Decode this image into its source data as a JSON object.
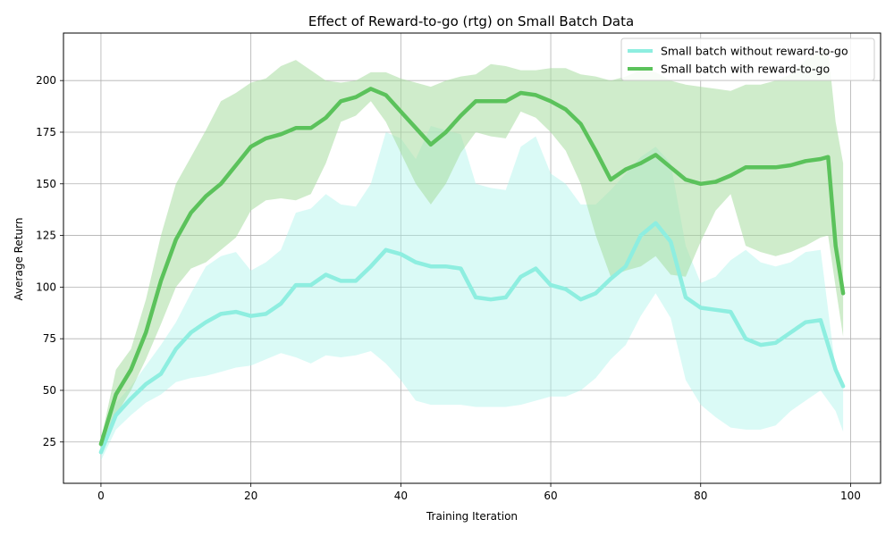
{
  "chart_data": {
    "type": "line",
    "title": "Effect of Reward-to-go (rtg) on Small Batch Data",
    "xlabel": "Training Iteration",
    "ylabel": "Average Return",
    "xlim": [
      -5,
      104
    ],
    "ylim": [
      5,
      223
    ],
    "xticks": [
      0,
      20,
      40,
      60,
      80,
      100
    ],
    "yticks": [
      25,
      50,
      75,
      100,
      125,
      150,
      175,
      200
    ],
    "grid": true,
    "legend_position": "top-right",
    "series": [
      {
        "name": "Small batch without reward-to-go",
        "color": "#8eeee0",
        "band_color": "#aef5ea",
        "x": [
          0,
          2,
          4,
          6,
          8,
          10,
          12,
          14,
          16,
          18,
          20,
          22,
          24,
          26,
          28,
          30,
          32,
          34,
          36,
          38,
          40,
          42,
          44,
          46,
          48,
          50,
          52,
          54,
          56,
          58,
          60,
          62,
          64,
          66,
          68,
          70,
          72,
          74,
          76,
          78,
          80,
          82,
          84,
          86,
          88,
          90,
          92,
          94,
          96,
          98,
          99
        ],
        "y": [
          20,
          38,
          46,
          53,
          58,
          70,
          78,
          83,
          87,
          88,
          86,
          87,
          92,
          101,
          101,
          106,
          103,
          103,
          110,
          118,
          116,
          112,
          110,
          110,
          109,
          95,
          94,
          95,
          105,
          109,
          101,
          99,
          94,
          97,
          104,
          110,
          125,
          131,
          122,
          95,
          90,
          89,
          88,
          75,
          72,
          73,
          78,
          83,
          84,
          60,
          52
        ],
        "upper": [
          25,
          44,
          52,
          62,
          72,
          83,
          97,
          110,
          115,
          117,
          108,
          112,
          118,
          136,
          138,
          145,
          140,
          139,
          150,
          175,
          172,
          162,
          178,
          176,
          174,
          150,
          148,
          147,
          168,
          173,
          155,
          150,
          140,
          140,
          147,
          155,
          163,
          168,
          160,
          120,
          102,
          105,
          113,
          118,
          112,
          110,
          112,
          117,
          118,
          60,
          52
        ],
        "lower": [
          16,
          31,
          38,
          44,
          48,
          54,
          56,
          57,
          59,
          61,
          62,
          65,
          68,
          66,
          63,
          67,
          66,
          67,
          69,
          63,
          55,
          45,
          43,
          43,
          43,
          42,
          42,
          42,
          43,
          45,
          47,
          47,
          50,
          56,
          65,
          72,
          86,
          97,
          85,
          55,
          43,
          37,
          32,
          31,
          31,
          33,
          40,
          45,
          50,
          40,
          30
        ]
      },
      {
        "name": "Small batch with reward-to-go",
        "color": "#5bc25b",
        "band_color": "#a8dca0",
        "x": [
          0,
          2,
          4,
          6,
          8,
          10,
          12,
          14,
          16,
          18,
          20,
          22,
          24,
          26,
          28,
          30,
          32,
          34,
          36,
          38,
          40,
          42,
          44,
          46,
          48,
          50,
          52,
          54,
          56,
          58,
          60,
          62,
          64,
          66,
          68,
          70,
          72,
          74,
          76,
          78,
          80,
          82,
          84,
          86,
          88,
          90,
          92,
          94,
          96,
          97,
          98,
          99
        ],
        "y": [
          24,
          48,
          60,
          78,
          103,
          123,
          136,
          144,
          150,
          159,
          168,
          172,
          174,
          177,
          177,
          182,
          190,
          192,
          196,
          193,
          185,
          177,
          169,
          175,
          183,
          190,
          190,
          190,
          194,
          193,
          190,
          186,
          179,
          166,
          152,
          157,
          160,
          164,
          158,
          152,
          150,
          151,
          154,
          158,
          158,
          158,
          159,
          161,
          162,
          163,
          120,
          97
        ],
        "upper": [
          26,
          60,
          70,
          94,
          125,
          150,
          163,
          176,
          190,
          194,
          199,
          201,
          207,
          210,
          205,
          200,
          199,
          200,
          204,
          204,
          201,
          199,
          197,
          200,
          202,
          203,
          208,
          207,
          205,
          205,
          206,
          206,
          203,
          202,
          200,
          202,
          205,
          204,
          200,
          198,
          197,
          196,
          195,
          198,
          198,
          200,
          203,
          210,
          214,
          215,
          180,
          160
        ],
        "lower": [
          22,
          38,
          50,
          65,
          82,
          100,
          109,
          112,
          118,
          124,
          137,
          142,
          143,
          142,
          145,
          160,
          180,
          183,
          190,
          180,
          165,
          150,
          140,
          150,
          165,
          175,
          173,
          172,
          185,
          182,
          175,
          166,
          150,
          125,
          105,
          108,
          110,
          115,
          106,
          105,
          122,
          137,
          145,
          120,
          117,
          115,
          117,
          120,
          124,
          125,
          100,
          76
        ]
      }
    ]
  }
}
